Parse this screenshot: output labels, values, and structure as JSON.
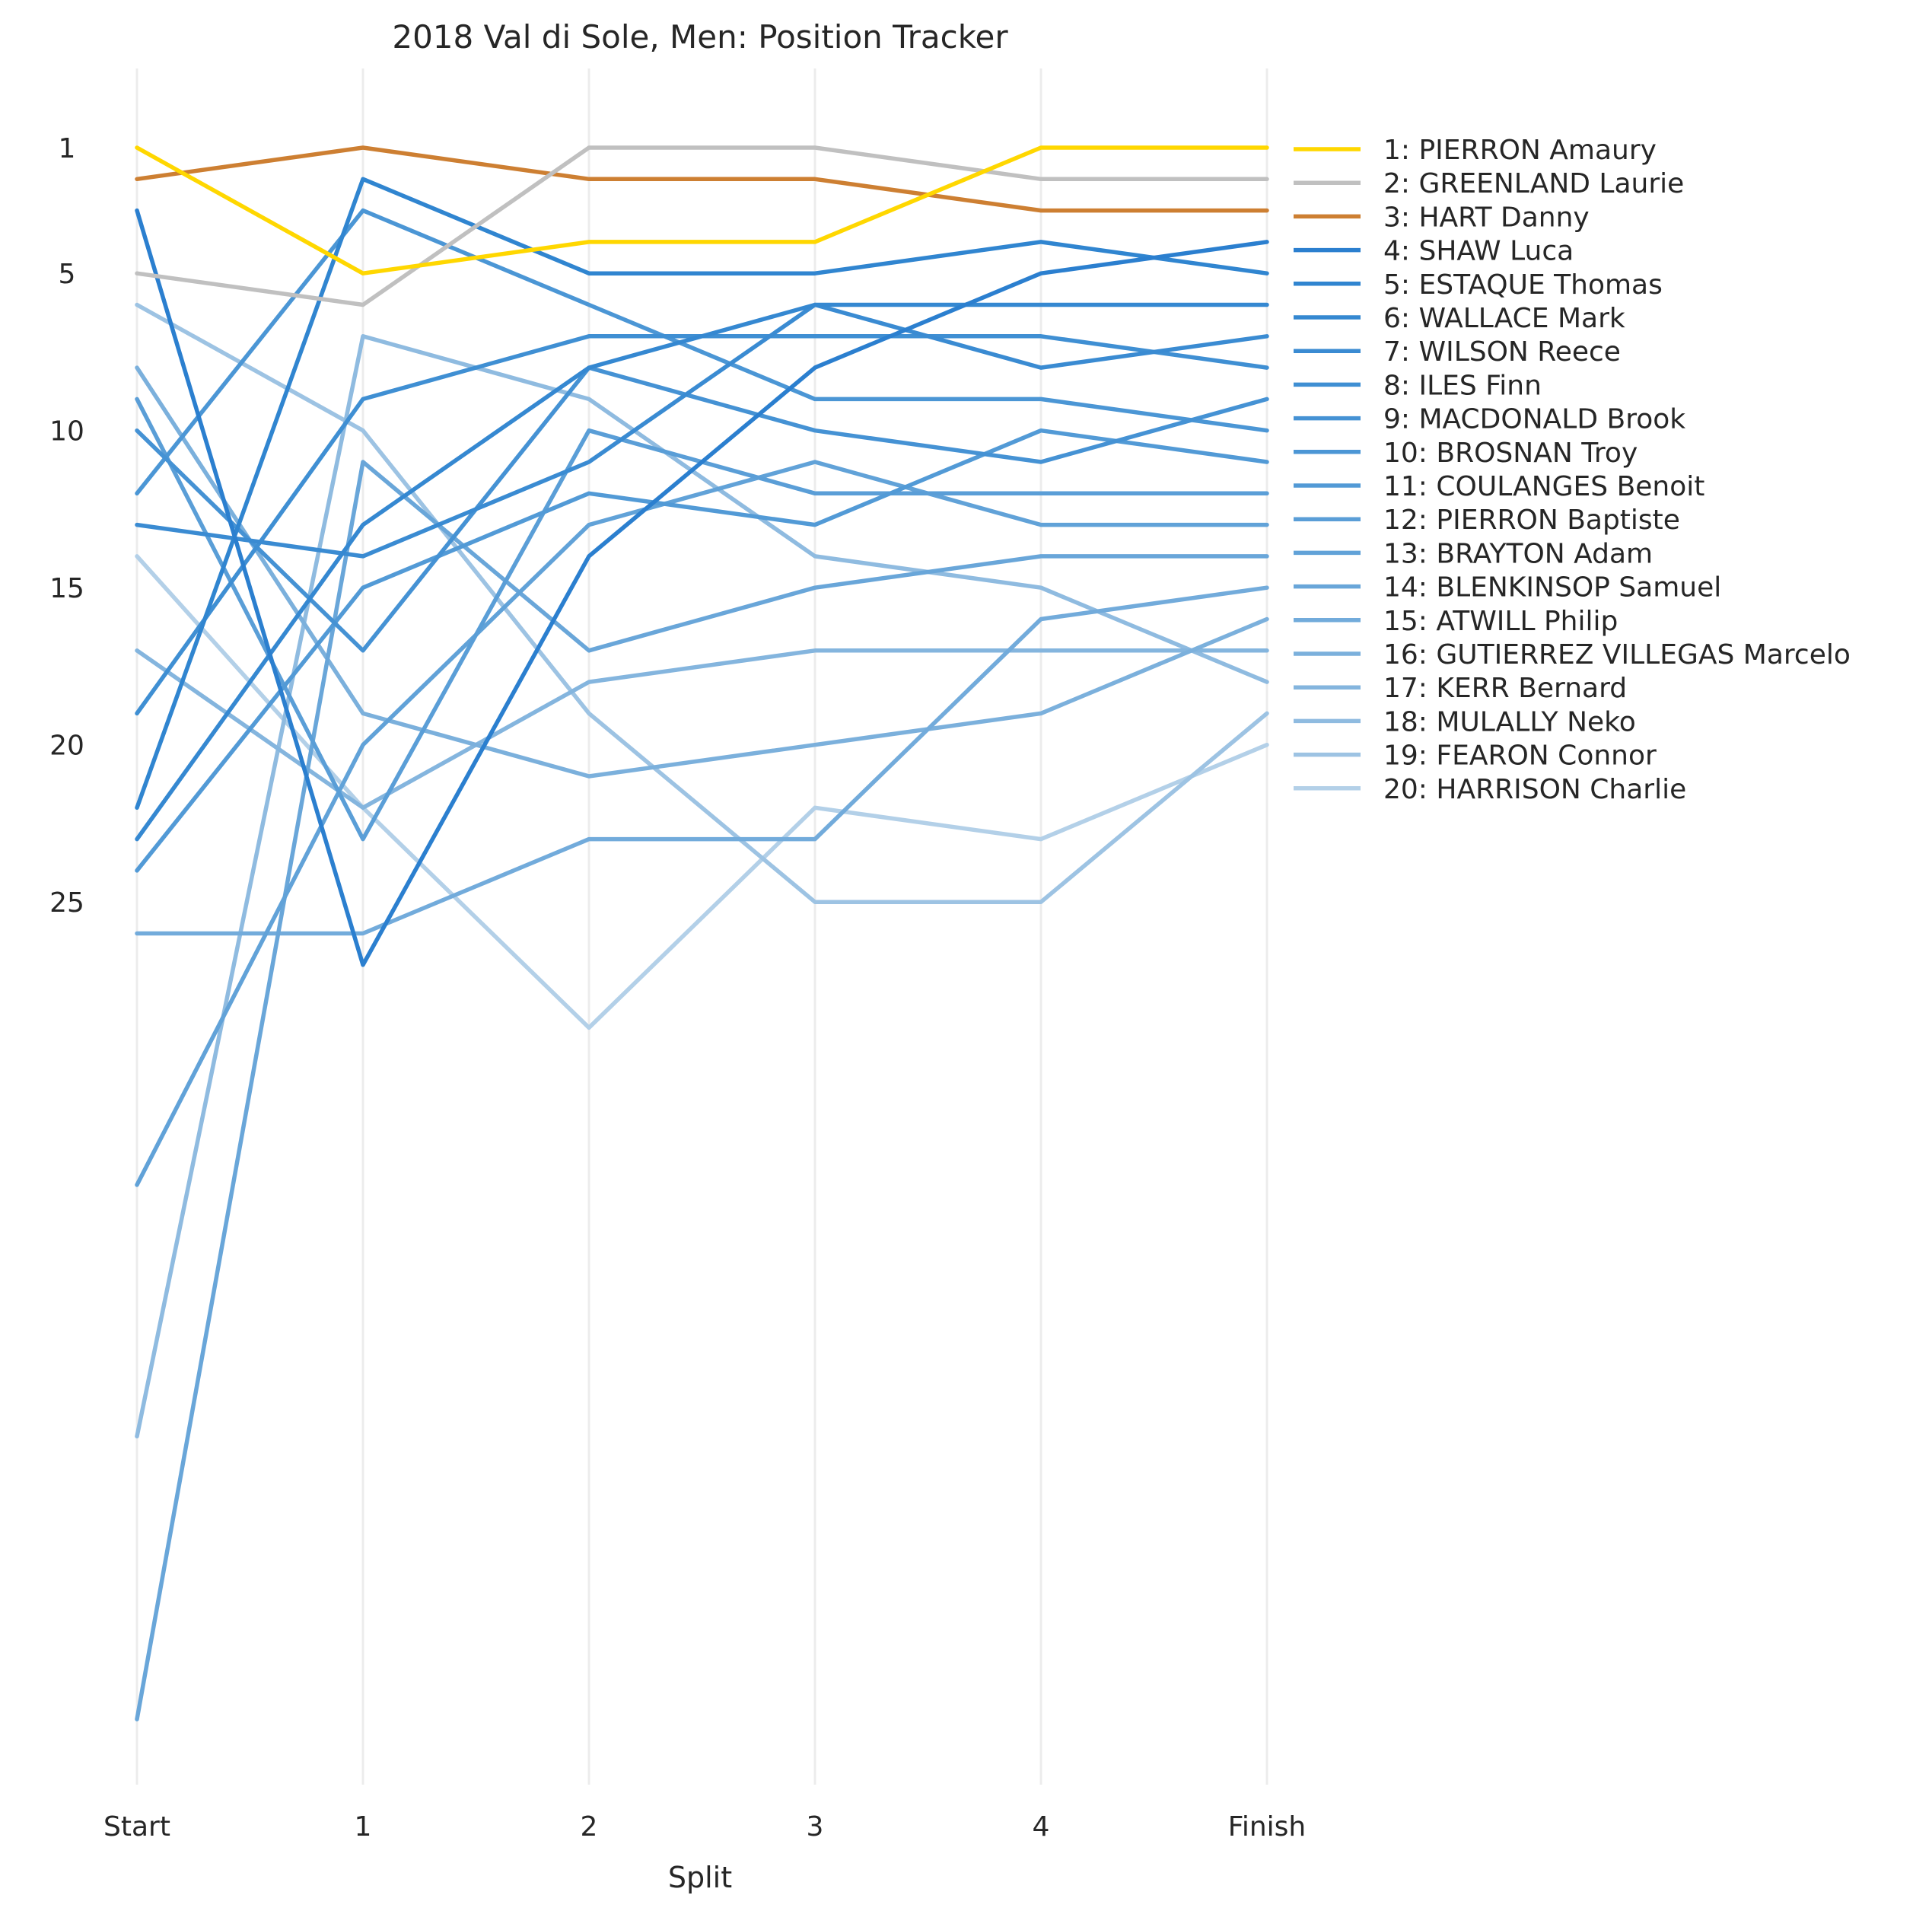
{
  "chart_data": {
    "type": "line",
    "title": "2018 Val di Sole, Men: Position Tracker",
    "xlabel": "Split",
    "ylabel": "",
    "categories": [
      "Start",
      "1",
      "2",
      "3",
      "4",
      "Finish"
    ],
    "y_ticks": [
      1,
      5,
      10,
      15,
      20,
      25
    ],
    "ylim": [
      54,
      -1
    ],
    "y_inverted": true,
    "grid": "vertical",
    "legend_position": "right",
    "series": [
      {
        "name": "1: PIERRON Amaury",
        "color": "#ffd700",
        "values": [
          1,
          5,
          4,
          4,
          1,
          1
        ]
      },
      {
        "name": "2: GREENLAND Laurie",
        "color": "#c0c0c0",
        "values": [
          5,
          6,
          1,
          1,
          2,
          2
        ]
      },
      {
        "name": "3: HART Danny",
        "color": "#cd7f32",
        "values": [
          2,
          1,
          2,
          2,
          3,
          3
        ]
      },
      {
        "name": "4: SHAW Luca",
        "color": "#2b7fcf",
        "values": [
          3,
          27,
          14,
          8,
          5,
          4
        ]
      },
      {
        "name": "5: ESTAQUE Thomas",
        "color": "#3085d0",
        "values": [
          22,
          2,
          5,
          5,
          4,
          5
        ]
      },
      {
        "name": "6: WALLACE Mark",
        "color": "#3588d1",
        "values": [
          23,
          13,
          8,
          6,
          6,
          6
        ]
      },
      {
        "name": "7: WILSON Reece",
        "color": "#3a8bd2",
        "values": [
          13,
          14,
          11,
          6,
          8,
          7
        ]
      },
      {
        "name": "8: ILES Finn",
        "color": "#3f8fd3",
        "values": [
          19,
          9,
          7,
          7,
          7,
          8
        ]
      },
      {
        "name": "9: MACDONALD Brook",
        "color": "#4592d4",
        "values": [
          10,
          17,
          8,
          10,
          11,
          9
        ]
      },
      {
        "name": "10: BROSNAN Troy",
        "color": "#4b96d5",
        "values": [
          12,
          3,
          6,
          9,
          9,
          10
        ]
      },
      {
        "name": "11: COULANGES Benoit",
        "color": "#529ad6",
        "values": [
          24,
          15,
          12,
          13,
          10,
          11
        ]
      },
      {
        "name": "12: PIERRON Baptiste",
        "color": "#5a9ed7",
        "values": [
          9,
          23,
          10,
          12,
          12,
          12
        ]
      },
      {
        "name": "13: BRAYTON Adam",
        "color": "#61a2d8",
        "values": [
          34,
          20,
          13,
          11,
          13,
          13
        ]
      },
      {
        "name": "14: BLENKINSOP Samuel",
        "color": "#69a6d9",
        "values": [
          51,
          11,
          17,
          15,
          14,
          14
        ]
      },
      {
        "name": "15: ATWILL Philip",
        "color": "#72abdb",
        "values": [
          26,
          26,
          23,
          23,
          16,
          15
        ]
      },
      {
        "name": "16: GUTIERREZ VILLEGAS Marcelo",
        "color": "#7bb0dc",
        "values": [
          8,
          19,
          21,
          20,
          19,
          16
        ]
      },
      {
        "name": "17: KERR Bernard",
        "color": "#84b5de",
        "values": [
          17,
          22,
          18,
          17,
          17,
          17
        ]
      },
      {
        "name": "18: MULALLY Neko",
        "color": "#8fbbe0",
        "values": [
          42,
          7,
          9,
          14,
          15,
          18
        ]
      },
      {
        "name": "19: FEARON Connor",
        "color": "#9dc3e3",
        "values": [
          6,
          10,
          19,
          25,
          25,
          19
        ]
      },
      {
        "name": "20: HARRISON Charlie",
        "color": "#b3d0e8",
        "values": [
          14,
          22,
          29,
          22,
          23,
          20
        ]
      }
    ]
  }
}
